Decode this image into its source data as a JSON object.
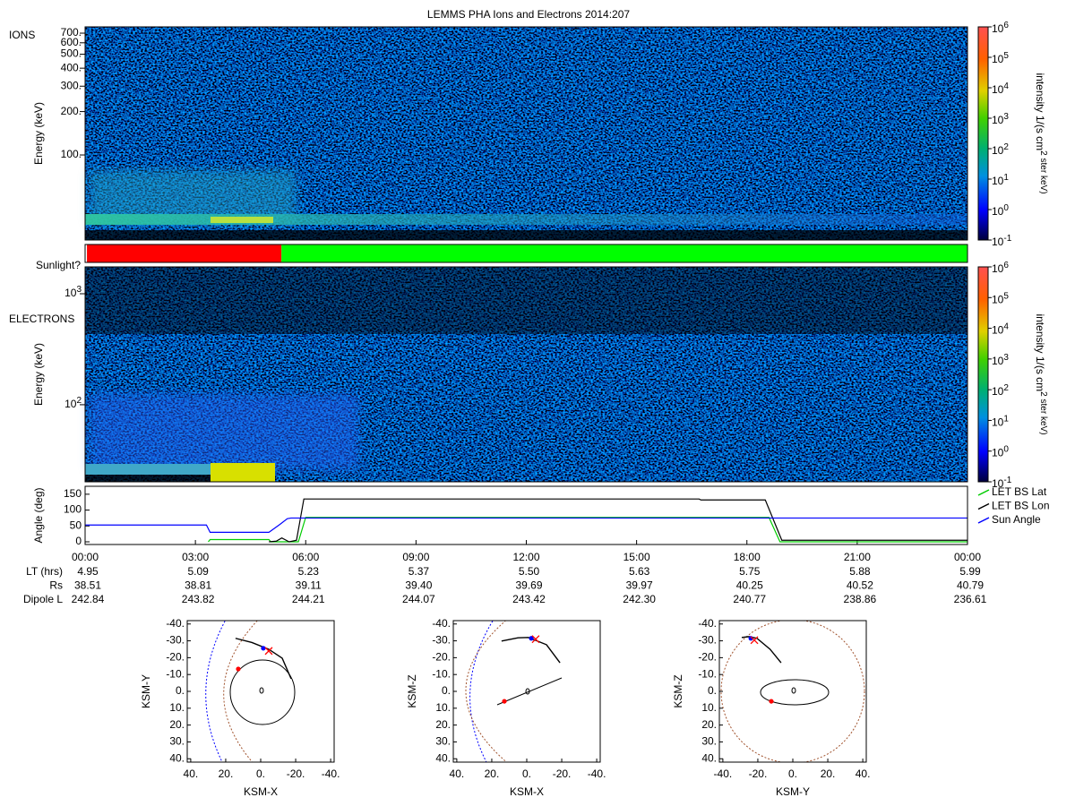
{
  "chart_data": [
    {
      "type": "spectrogram",
      "title": "LEMMS PHA Ions and Electrons  2014:207",
      "panel_label": "IONS",
      "y_label": "Energy (keV)",
      "log_y": true,
      "xlim": [
        0,
        24
      ],
      "ylim": [
        25.7,
        774
      ],
      "yticks": [
        {
          "value": 100,
          "label": "100."
        },
        {
          "value": 200,
          "label": "200."
        },
        {
          "value": 300,
          "label": "300."
        },
        {
          "value": 400,
          "label": "400."
        },
        {
          "value": 500,
          "label": "500."
        },
        {
          "value": 600,
          "label": "600."
        },
        {
          "value": 700,
          "label": "700."
        }
      ],
      "colorbar": {
        "label": "intensity 1/(s cm^2 ster keV)",
        "log": true,
        "lim": [
          0.1,
          1000000
        ],
        "ticks": [
          {
            "value": 0.1,
            "label": "10^-1"
          },
          {
            "value": 1,
            "label": "10^0"
          },
          {
            "value": 10,
            "label": "10^1"
          },
          {
            "value": 100,
            "label": "10^2"
          },
          {
            "value": 1000,
            "label": "10^3"
          },
          {
            "value": 10000,
            "label": "10^4"
          },
          {
            "value": 100000,
            "label": "10^5"
          },
          {
            "value": 1000000,
            "label": "10^6"
          }
        ]
      }
    },
    {
      "type": "state-bar",
      "label": "Sunlight?",
      "xlim": [
        0,
        24
      ],
      "segments": [
        {
          "start": 0,
          "end": 0.05,
          "color": "#ffffff"
        },
        {
          "start": 0.05,
          "end": 5.34,
          "color": "#ff0000"
        },
        {
          "start": 5.34,
          "end": 24,
          "color": "#00ff00"
        }
      ]
    },
    {
      "type": "spectrogram",
      "panel_label": "ELECTRONS",
      "y_label": "Energy (keV)",
      "log_y": true,
      "xlim": [
        0,
        24
      ],
      "ylim": [
        20.2,
        1746
      ],
      "yticks": [
        {
          "value": 100,
          "label": "10^2"
        },
        {
          "value": 1000,
          "label": "10^3"
        }
      ],
      "colorbar": {
        "label": "intensity 1/(s cm^2 ster keV)",
        "log": true,
        "lim": [
          0.1,
          1000000
        ],
        "ticks": [
          {
            "value": 0.1,
            "label": "10^-1"
          },
          {
            "value": 1,
            "label": "10^0"
          },
          {
            "value": 10,
            "label": "10^1"
          },
          {
            "value": 100,
            "label": "10^2"
          },
          {
            "value": 1000,
            "label": "10^3"
          },
          {
            "value": 10000,
            "label": "10^4"
          },
          {
            "value": 100000,
            "label": "10^5"
          },
          {
            "value": 1000000,
            "label": "10^6"
          }
        ]
      }
    },
    {
      "type": "line",
      "y_label": "Angle (deg)",
      "xlim": [
        0,
        24
      ],
      "ylim": [
        -8.5,
        175
      ],
      "yticks": [
        0,
        50,
        100,
        150
      ],
      "legend": "right",
      "xticks": [
        {
          "value": 0,
          "label": "00:00"
        },
        {
          "value": 3,
          "label": "03:00"
        },
        {
          "value": 6,
          "label": "06:00"
        },
        {
          "value": 9,
          "label": "09:00"
        },
        {
          "value": 12,
          "label": "12:00"
        },
        {
          "value": 15,
          "label": "15:00"
        },
        {
          "value": 18,
          "label": "18:00"
        },
        {
          "value": 21,
          "label": "21:00"
        },
        {
          "value": 24,
          "label": "00:00"
        }
      ],
      "series": [
        {
          "name": "LET BS Lat",
          "color": "#00cc00",
          "x": [
            3.35,
            3.4,
            5.0,
            5.05,
            5.8,
            6.0,
            18.6,
            18.9,
            24
          ],
          "values": [
            0,
            7,
            7,
            0,
            0,
            77,
            77,
            0,
            0
          ]
        },
        {
          "name": "LET BS Lon",
          "color": "#000000",
          "x": [
            5.0,
            5.2,
            5.35,
            5.55,
            5.75,
            5.95,
            16.7,
            16.75,
            18.5,
            18.95,
            24
          ],
          "values": [
            0,
            2,
            12,
            0,
            5,
            135,
            135,
            132,
            132,
            5,
            5
          ]
        },
        {
          "name": "Sun Angle",
          "color": "#0000ff",
          "x": [
            0,
            3.3,
            3.4,
            5.0,
            5.3,
            5.5,
            5.6,
            24
          ],
          "values": [
            53,
            53,
            30,
            30,
            55,
            73,
            75,
            75
          ]
        }
      ],
      "rows": [
        {
          "label": "LT (hrs)",
          "values": [
            "4.95",
            "5.09",
            "5.23",
            "5.37",
            "5.50",
            "5.63",
            "5.75",
            "5.88",
            "5.99"
          ]
        },
        {
          "label": "Rs",
          "values": [
            "38.51",
            "38.81",
            "39.11",
            "39.40",
            "39.69",
            "39.97",
            "40.25",
            "40.52",
            "40.79"
          ]
        },
        {
          "label": "Dipole L",
          "values": [
            "242.84",
            "243.82",
            "244.21",
            "244.07",
            "243.42",
            "242.30",
            "240.77",
            "238.86",
            "236.61"
          ]
        }
      ]
    },
    {
      "type": "orbit",
      "x_label": "KSM-X",
      "y_label": "KSM-Y",
      "xlim": [
        42,
        -42
      ],
      "ylim": [
        42,
        -42
      ],
      "xticks": [
        {
          "value": 40,
          "label": "40."
        },
        {
          "value": 20,
          "label": "20."
        },
        {
          "value": 0,
          "label": "0."
        },
        {
          "value": -20,
          "label": "-20."
        },
        {
          "value": -40,
          "label": "-40."
        }
      ],
      "yticks": [
        {
          "value": -40,
          "label": "-40."
        },
        {
          "value": -30,
          "label": "-30."
        },
        {
          "value": -20,
          "label": "-20."
        },
        {
          "value": -10,
          "label": "-10."
        },
        {
          "value": 0,
          "label": "0."
        },
        {
          "value": 10,
          "label": "10."
        },
        {
          "value": 20,
          "label": "20."
        },
        {
          "value": 30,
          "label": "30."
        },
        {
          "value": 40,
          "label": "40."
        }
      ],
      "trajectory": {
        "x": [
          14.4,
          5,
          -4.6,
          -12.3,
          -17.4
        ],
        "y": [
          -31.5,
          -29,
          -25,
          -19.7,
          -7.5
        ]
      },
      "points": [
        {
          "x": -1.5,
          "y": -25.6,
          "color": "#0000ff",
          "symbol": "dot"
        },
        {
          "x": -4.6,
          "y": -24,
          "color": "#ff0000",
          "symbol": "x"
        },
        {
          "x": 12.8,
          "y": -13.3,
          "color": "#ff0000",
          "symbol": "dot"
        }
      ]
    },
    {
      "type": "orbit",
      "x_label": "KSM-X",
      "y_label": "KSM-Z",
      "xlim": [
        42,
        -42
      ],
      "ylim": [
        42,
        -42
      ],
      "xticks": [
        {
          "value": 40,
          "label": "40."
        },
        {
          "value": 20,
          "label": "20."
        },
        {
          "value": 0,
          "label": "0."
        },
        {
          "value": -20,
          "label": "-20."
        },
        {
          "value": -40,
          "label": "-40."
        }
      ],
      "yticks": [
        {
          "value": -40,
          "label": "-40."
        },
        {
          "value": -30,
          "label": "-30."
        },
        {
          "value": -20,
          "label": "-20."
        },
        {
          "value": -10,
          "label": "-10."
        },
        {
          "value": 0,
          "label": "0."
        },
        {
          "value": 10,
          "label": "10."
        },
        {
          "value": 20,
          "label": "20."
        },
        {
          "value": 30,
          "label": "30."
        },
        {
          "value": 40,
          "label": "40."
        }
      ],
      "trajectory": {
        "x": [
          14.4,
          5,
          -1,
          -11.3,
          -19
        ],
        "y": [
          -29.9,
          -31.8,
          -32,
          -27.7,
          -17
        ]
      },
      "points": [
        {
          "x": -2.6,
          "y": -31.5,
          "color": "#0000ff",
          "symbol": "dot"
        },
        {
          "x": -5.1,
          "y": -31,
          "color": "#ff0000",
          "symbol": "x"
        },
        {
          "x": 12.8,
          "y": 5.9,
          "color": "#ff0000",
          "symbol": "dot"
        }
      ]
    },
    {
      "type": "orbit",
      "x_label": "KSM-Y",
      "y_label": "KSM-Z",
      "xlim": [
        -42,
        42
      ],
      "ylim": [
        42,
        -42
      ],
      "xticks": [
        {
          "value": -40,
          "label": "-40."
        },
        {
          "value": -20,
          "label": "-20."
        },
        {
          "value": 0,
          "label": "0."
        },
        {
          "value": 20,
          "label": "20."
        },
        {
          "value": 40,
          "label": "40."
        }
      ],
      "yticks": [
        {
          "value": -40,
          "label": "-40."
        },
        {
          "value": -30,
          "label": "-30."
        },
        {
          "value": -20,
          "label": "-20."
        },
        {
          "value": -10,
          "label": "-10."
        },
        {
          "value": 0,
          "label": "0."
        },
        {
          "value": 10,
          "label": "10."
        },
        {
          "value": 20,
          "label": "20."
        },
        {
          "value": 30,
          "label": "30."
        },
        {
          "value": 40,
          "label": "40."
        }
      ],
      "trajectory": {
        "x": [
          -29.2,
          -25,
          -20.5,
          -13,
          -6.7
        ],
        "y": [
          -32,
          -32.5,
          -31.5,
          -25,
          -17
        ]
      },
      "points": [
        {
          "x": -24,
          "y": -31.5,
          "color": "#0000ff",
          "symbol": "dot"
        },
        {
          "x": -22,
          "y": -30.4,
          "color": "#ff0000",
          "symbol": "x"
        },
        {
          "x": -12.3,
          "y": 5.9,
          "color": "#ff0000",
          "symbol": "dot"
        }
      ]
    }
  ]
}
